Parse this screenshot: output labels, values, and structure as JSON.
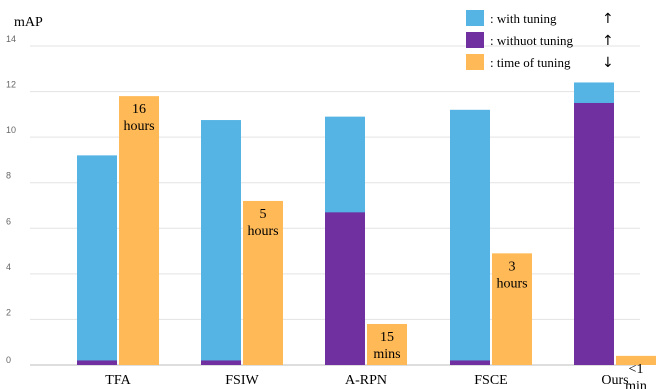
{
  "chart_data": {
    "type": "bar",
    "ylabel": "mAP",
    "ylim": [
      0,
      14
    ],
    "yticks": [
      0,
      2,
      4,
      6,
      8,
      10,
      12,
      14
    ],
    "grid": true,
    "legend_position": "top-right",
    "categories": [
      "TFA",
      "FSIW",
      "A-RPN",
      "FSCE",
      "Ours"
    ],
    "series": [
      {
        "name": ": with      tuning",
        "arrow": "↑",
        "color": "#56b4e4",
        "values": [
          9.2,
          10.75,
          10.9,
          11.2,
          12.4
        ]
      },
      {
        "name": ": withuot tuning",
        "arrow": "↑",
        "color": "#7030a0",
        "values": [
          0.2,
          0.2,
          6.7,
          0.2,
          11.5
        ]
      },
      {
        "name": ": time of  tuning",
        "arrow": "↓",
        "color": "#ffb957",
        "values": [
          11.8,
          7.2,
          1.8,
          4.9,
          0.4
        ]
      }
    ],
    "time_labels": [
      [
        "16",
        "hours"
      ],
      [
        "5",
        "hours"
      ],
      [
        "15",
        "mins"
      ],
      [
        "3",
        "hours"
      ],
      [
        "<1",
        "min"
      ]
    ]
  }
}
